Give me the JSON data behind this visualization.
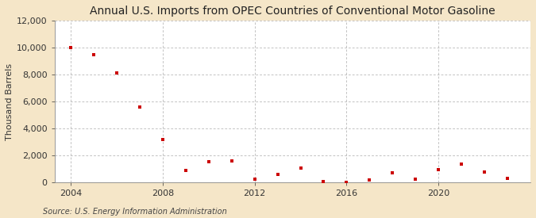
{
  "title": "Annual U.S. Imports from OPEC Countries of Conventional Motor Gasoline",
  "ylabel": "Thousand Barrels",
  "source": "Source: U.S. Energy Information Administration",
  "fig_background_color": "#f5e6c8",
  "plot_background_color": "#ffffff",
  "marker_color": "#cc0000",
  "years": [
    2004,
    2005,
    2006,
    2007,
    2008,
    2009,
    2010,
    2011,
    2012,
    2013,
    2014,
    2015,
    2016,
    2017,
    2018,
    2019,
    2020,
    2021,
    2022,
    2023
  ],
  "values": [
    10000,
    9500,
    8100,
    5600,
    3150,
    850,
    1500,
    1600,
    200,
    600,
    1050,
    30,
    -20,
    150,
    700,
    200,
    950,
    1350,
    750,
    300
  ],
  "xlim": [
    2003.3,
    2024.0
  ],
  "ylim": [
    0,
    12000
  ],
  "yticks": [
    0,
    2000,
    4000,
    6000,
    8000,
    10000,
    12000
  ],
  "xticks": [
    2004,
    2008,
    2012,
    2016,
    2020
  ],
  "grid_color": "#aaaaaa",
  "title_fontsize": 10,
  "axis_fontsize": 8,
  "tick_fontsize": 8,
  "source_fontsize": 7
}
